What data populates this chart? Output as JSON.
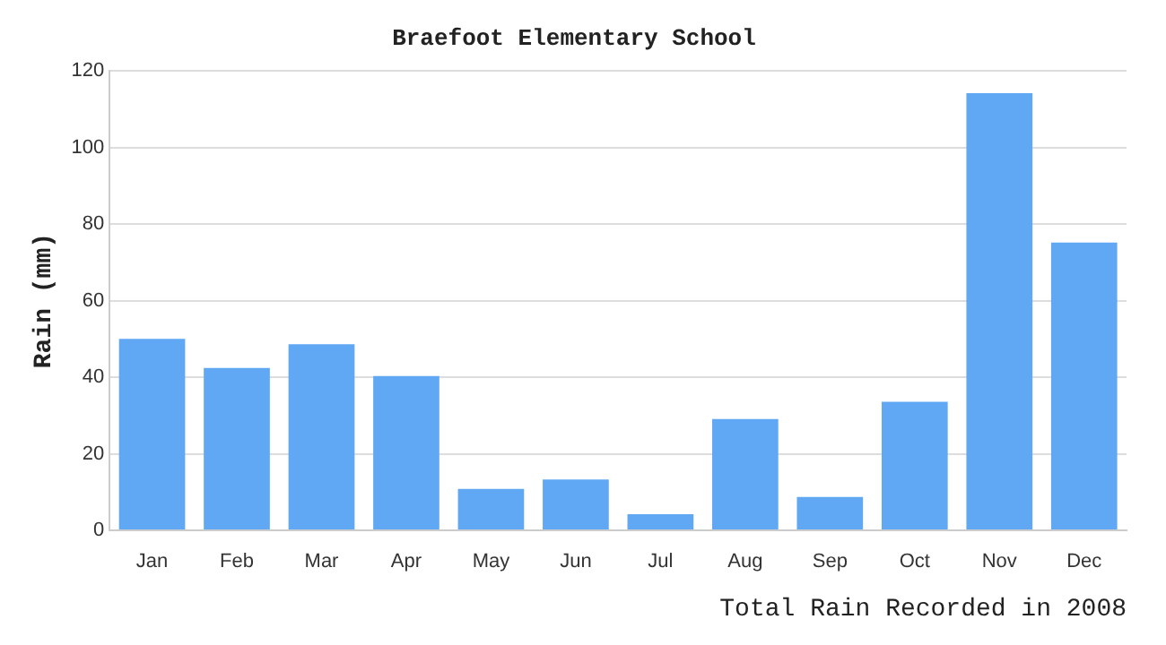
{
  "chart_data": {
    "type": "bar",
    "title": "Braefoot Elementary School",
    "xlabel": "Total Rain Recorded in 2008",
    "ylabel": "Rain (mm)",
    "categories": [
      "Jan",
      "Feb",
      "Mar",
      "Apr",
      "May",
      "Jun",
      "Jul",
      "Aug",
      "Sep",
      "Oct",
      "Nov",
      "Dec"
    ],
    "values": [
      50,
      42.4,
      48.6,
      40.3,
      10.8,
      13.3,
      4.2,
      29.1,
      8.7,
      33.6,
      114.2,
      75.2
    ],
    "color": "#60a8f4",
    "ylim": [
      0,
      120
    ],
    "yticks": [
      0,
      20,
      40,
      60,
      80,
      100,
      120
    ],
    "grid": "y",
    "legend": false
  }
}
